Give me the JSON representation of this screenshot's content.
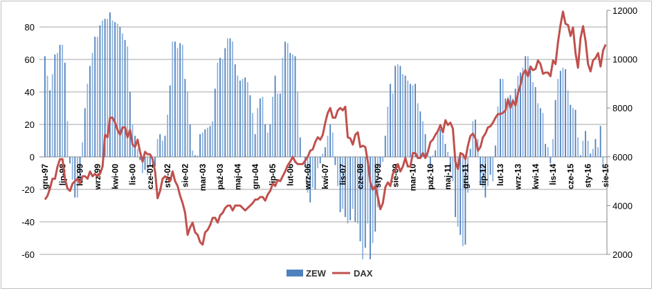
{
  "chart_data": {
    "type": "bar+line",
    "title": "",
    "start_month": "1997-12",
    "x_tick_labels": [
      "gru-97",
      "lip-98",
      "lut-99",
      "wrz-99",
      "kwi-00",
      "lis-00",
      "cze-01",
      "sty-02",
      "sie-02",
      "mar-03",
      "paź-03",
      "maj-04",
      "gru-04",
      "lip-05",
      "lut-06",
      "wrz-06",
      "kwi-07",
      "lis-07",
      "cze-08",
      "sty-09",
      "sie-09",
      "mar-10",
      "paź-10",
      "maj-11",
      "gru-11",
      "lip-12",
      "lut-13",
      "wrz-13",
      "kwi-14",
      "lis-14",
      "cze-15",
      "sty-16",
      "sie-16"
    ],
    "x_tick_every_months": 7,
    "y_left": {
      "min": -60,
      "max": 90,
      "ticks": [
        -60,
        -40,
        -20,
        0,
        20,
        40,
        60,
        80
      ]
    },
    "y_right": {
      "min": 2000,
      "max": 12000,
      "ticks": [
        2000,
        4000,
        6000,
        8000,
        10000,
        12000
      ]
    },
    "grid": true,
    "legend_position": "bottom",
    "series": [
      {
        "name": "ZEW",
        "type": "bar",
        "axis": "left",
        "color": "#4f81bd",
        "values": [
          62,
          50,
          41,
          51,
          63,
          64,
          69,
          69,
          58,
          22,
          -4,
          -14,
          -25,
          -25,
          -14,
          9,
          30,
          45,
          56,
          64,
          74,
          74,
          81,
          84,
          85,
          85,
          89,
          84,
          83,
          82,
          80,
          76,
          72,
          68,
          40,
          20,
          13,
          5,
          -2,
          -10,
          -8,
          -11,
          -6,
          -4,
          -6,
          11,
          14,
          10,
          13,
          26,
          44,
          71,
          71,
          67,
          70,
          69,
          48,
          40,
          20,
          4,
          1,
          1,
          14,
          15,
          17,
          18,
          19,
          22,
          42,
          58,
          61,
          60,
          67,
          73,
          73,
          71,
          57,
          50,
          47,
          48,
          49,
          46,
          38,
          27,
          14,
          30,
          36,
          37,
          20,
          15,
          20,
          37,
          50,
          39,
          39,
          61,
          71,
          70,
          64,
          63,
          62,
          40,
          12,
          0,
          -5,
          -22,
          -28,
          -19,
          -20,
          -7,
          -4,
          2,
          6,
          13,
          20,
          15,
          -5,
          -18,
          -34,
          -32,
          -37,
          -41,
          -39,
          -32,
          -40,
          -41,
          -52,
          -63,
          -56,
          -41,
          -63,
          -53,
          -46,
          -31,
          -6,
          -3,
          13,
          31,
          45,
          39,
          56,
          57,
          56,
          51,
          50,
          47,
          45,
          44,
          45,
          33,
          28,
          22,
          14,
          4,
          -7,
          1,
          4,
          15,
          17,
          14,
          8,
          3,
          -9,
          -15,
          -37,
          -43,
          -48,
          -55,
          -54,
          -22,
          5,
          22,
          23,
          11,
          -17,
          -19,
          -25,
          -18,
          -11,
          -15,
          7,
          31,
          48,
          48,
          36,
          37,
          38,
          36,
          42,
          50,
          52,
          55,
          62,
          62,
          56,
          46,
          43,
          33,
          30,
          27,
          8,
          6,
          -4,
          11,
          35,
          48,
          53,
          55,
          54,
          41,
          32,
          30,
          29,
          12,
          1,
          10,
          16,
          10,
          2,
          5,
          11,
          6,
          19,
          -7,
          0
        ]
      },
      {
        "name": "DAX",
        "type": "line",
        "axis": "right",
        "color": "#c0504d",
        "values": [
          4250,
          4400,
          4700,
          5100,
          5100,
          5600,
          5900,
          5900,
          5100,
          4700,
          4600,
          4900,
          5000,
          5100,
          4900,
          5200,
          5200,
          5100,
          5400,
          5200,
          5300,
          5200,
          5300,
          5600,
          6900,
          6800,
          7600,
          7600,
          7400,
          7100,
          6900,
          7200,
          7200,
          6800,
          7100,
          6500,
          6400,
          6700,
          6200,
          5800,
          6200,
          6100,
          6100,
          5900,
          5400,
          4300,
          4600,
          5100,
          5200,
          5100,
          5000,
          5400,
          5000,
          4800,
          4400,
          4100,
          3700,
          2800,
          3100,
          3300,
          2900,
          2800,
          2500,
          2400,
          2900,
          3000,
          3200,
          3500,
          3500,
          3300,
          3600,
          3700,
          3900,
          4000,
          4000,
          3800,
          4000,
          4000,
          4000,
          3900,
          3800,
          3900,
          4000,
          4100,
          4250,
          4250,
          4350,
          4350,
          4200,
          4450,
          4600,
          4900,
          4800,
          5050,
          5000,
          5200,
          5400,
          5650,
          5800,
          6000,
          5800,
          5700,
          5700,
          5700,
          5850,
          6000,
          6250,
          6300,
          6600,
          6800,
          6700,
          6900,
          7400,
          7800,
          8000,
          7600,
          7600,
          7900,
          8000,
          7900,
          8050,
          6800,
          6750,
          6500,
          6900,
          7000,
          6400,
          6450,
          6400,
          5800,
          4950,
          4650,
          4800,
          4350,
          3850,
          4100,
          4750,
          4950,
          4800,
          5300,
          5450,
          5700,
          5400,
          5600,
          5950,
          5600,
          5600,
          6150,
          6150,
          5950,
          5950,
          6150,
          5950,
          6200,
          6600,
          6700,
          6900,
          7050,
          7300,
          7000,
          7500,
          7300,
          7400,
          7150,
          5800,
          5500,
          6150,
          6100,
          5900,
          6450,
          6850,
          6950,
          6750,
          6250,
          6400,
          6800,
          6950,
          7200,
          7250,
          7400,
          7600,
          7750,
          7750,
          7800,
          7900,
          8350,
          8000,
          8300,
          8100,
          8600,
          8950,
          9400,
          9550,
          9300,
          9700,
          9550,
          9600,
          9950,
          9800,
          9400,
          9450,
          9450,
          9300,
          9950,
          9800,
          10700,
          11400,
          11950,
          11450,
          11400,
          10950,
          11300,
          10250,
          9650,
          10850,
          11350,
          10750,
          9800,
          9500,
          9950,
          10050,
          10250,
          9700,
          10350,
          10600
        ]
      }
    ]
  }
}
